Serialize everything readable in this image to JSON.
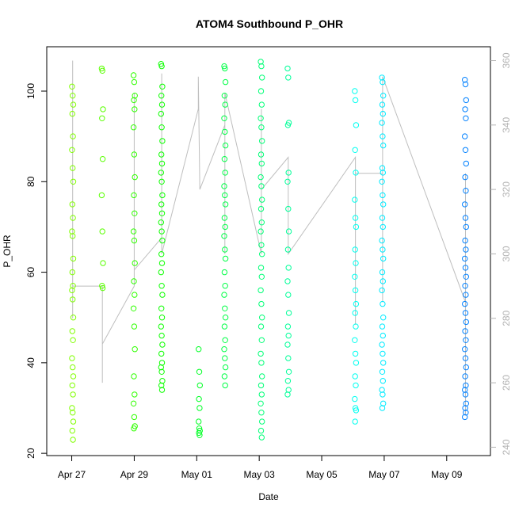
{
  "chart_data": {
    "type": "scatter",
    "title": "ATOM4 Southbound P_OHR",
    "xlabel": "Date",
    "ylabel": "P_OHR",
    "x_ticks": [
      "Apr 27",
      "Apr 29",
      "May 01",
      "May 03",
      "May 05",
      "May 07",
      "May 09"
    ],
    "x_tick_days": [
      0,
      2,
      4,
      6,
      8,
      10,
      12
    ],
    "x_range_days": [
      -0.8,
      13.4
    ],
    "y_ticks": [
      20,
      40,
      60,
      80,
      100
    ],
    "ylim": [
      19.5,
      109.8
    ],
    "y2_ticks": [
      240,
      260,
      280,
      300,
      320,
      340,
      360
    ],
    "y2lim": [
      237.4,
      364.3
    ],
    "grid": false,
    "legend": "none",
    "point_color_scale": [
      "#80ff00",
      "#00ff00",
      "#00ff80",
      "#00ffff",
      "#0080ff"
    ],
    "line_color": "#bebebe",
    "series": [
      {
        "name": "",
        "day": 0.03,
        "values": [
          101,
          99,
          97,
          95,
          90,
          87,
          83,
          80,
          75,
          72,
          69,
          68,
          63,
          60,
          57,
          56,
          54,
          50,
          47,
          45,
          41,
          39,
          37,
          35,
          33,
          30,
          29,
          27,
          25,
          23
        ]
      },
      {
        "name": "",
        "day": 0.98,
        "values": [
          105,
          104.5,
          96,
          94,
          85,
          77,
          69,
          62,
          57,
          56.5
        ]
      },
      {
        "name": "",
        "day": 2.0,
        "values": [
          103.5,
          102,
          99,
          98,
          96,
          92,
          86,
          81,
          77,
          73,
          69,
          67,
          62,
          58,
          55,
          52,
          48,
          43,
          37,
          33,
          31,
          28,
          26,
          25.5
        ]
      },
      {
        "name": "",
        "day": 2.88,
        "values": [
          106,
          105.5,
          101,
          99,
          97,
          95,
          92,
          89,
          86,
          84,
          82,
          80,
          77,
          75,
          73,
          71,
          69,
          67,
          64,
          62,
          60,
          57,
          55,
          52,
          50,
          48,
          46,
          44,
          42,
          40,
          39,
          38,
          36,
          35,
          34
        ]
      },
      {
        "name": "",
        "day": 4.08,
        "values": [
          43,
          38,
          35,
          32,
          30,
          27,
          25.5,
          25,
          24.5,
          24
        ]
      },
      {
        "name": "",
        "day": 4.9,
        "values": [
          105.5,
          105,
          102,
          99,
          97,
          94,
          91,
          88,
          85,
          82,
          79,
          77,
          75,
          72,
          70,
          68,
          65,
          63,
          60,
          57,
          55,
          52,
          50,
          48,
          45,
          43,
          41,
          39,
          37,
          35
        ]
      },
      {
        "name": "",
        "day": 6.07,
        "values": [
          106.5,
          105.5,
          103,
          100,
          97,
          94,
          92,
          89,
          86,
          84,
          81,
          79,
          76,
          74,
          71,
          69,
          66,
          64,
          61,
          59,
          56,
          53,
          50,
          48,
          45,
          42,
          40,
          37,
          35,
          33,
          31,
          29,
          27,
          25,
          23.5
        ]
      },
      {
        "name": "",
        "day": 6.93,
        "values": [
          105,
          103,
          93,
          92.5,
          82,
          80,
          74,
          69,
          65,
          61,
          58,
          55,
          51,
          48,
          46,
          44,
          41,
          38,
          36,
          34,
          33
        ]
      },
      {
        "name": "",
        "day": 9.08,
        "values": [
          100,
          98,
          92.5,
          87,
          82,
          76,
          72,
          70,
          65,
          62,
          59,
          56,
          53,
          51,
          48,
          45,
          42,
          40,
          37,
          35,
          32,
          30,
          29.5,
          27
        ]
      },
      {
        "name": "",
        "day": 9.95,
        "values": [
          103,
          102,
          99,
          97,
          95,
          93,
          90,
          88,
          83,
          82,
          80,
          77,
          75,
          72,
          70,
          67,
          65,
          63,
          60,
          58,
          56,
          53,
          50,
          48,
          46,
          44,
          42,
          40,
          38,
          36,
          34,
          33,
          31,
          30
        ]
      },
      {
        "name": "",
        "day": 12.6,
        "values": [
          102.5,
          101.5,
          98,
          96,
          94,
          90,
          87,
          84,
          81,
          78,
          75,
          72,
          70,
          67,
          65,
          63,
          61,
          59,
          57,
          55,
          53,
          51,
          49,
          47,
          45,
          43,
          41,
          39,
          37,
          35,
          34,
          33,
          31,
          30,
          29,
          28
        ]
      }
    ],
    "right_axis_line": {
      "x_days": [
        0.03,
        0.03,
        0.03,
        0.98,
        0.98,
        0.98,
        2.0,
        2.0,
        2.0,
        2.88,
        2.88,
        2.88,
        4.05,
        4.05,
        4.1,
        4.9,
        4.9,
        4.9,
        6.07,
        6.07,
        6.07,
        6.93,
        6.93,
        9.08,
        9.08,
        9.08,
        9.95,
        9.95,
        9.95,
        12.6,
        12.6,
        12.6
      ],
      "values": [
        280,
        360,
        290,
        290,
        260,
        272,
        290,
        350,
        295,
        305,
        356,
        300,
        345,
        355,
        320,
        340,
        300,
        350,
        300,
        345,
        320,
        330,
        300,
        330,
        278,
        325,
        325,
        285,
        355,
        285,
        250,
        325
      ]
    }
  }
}
